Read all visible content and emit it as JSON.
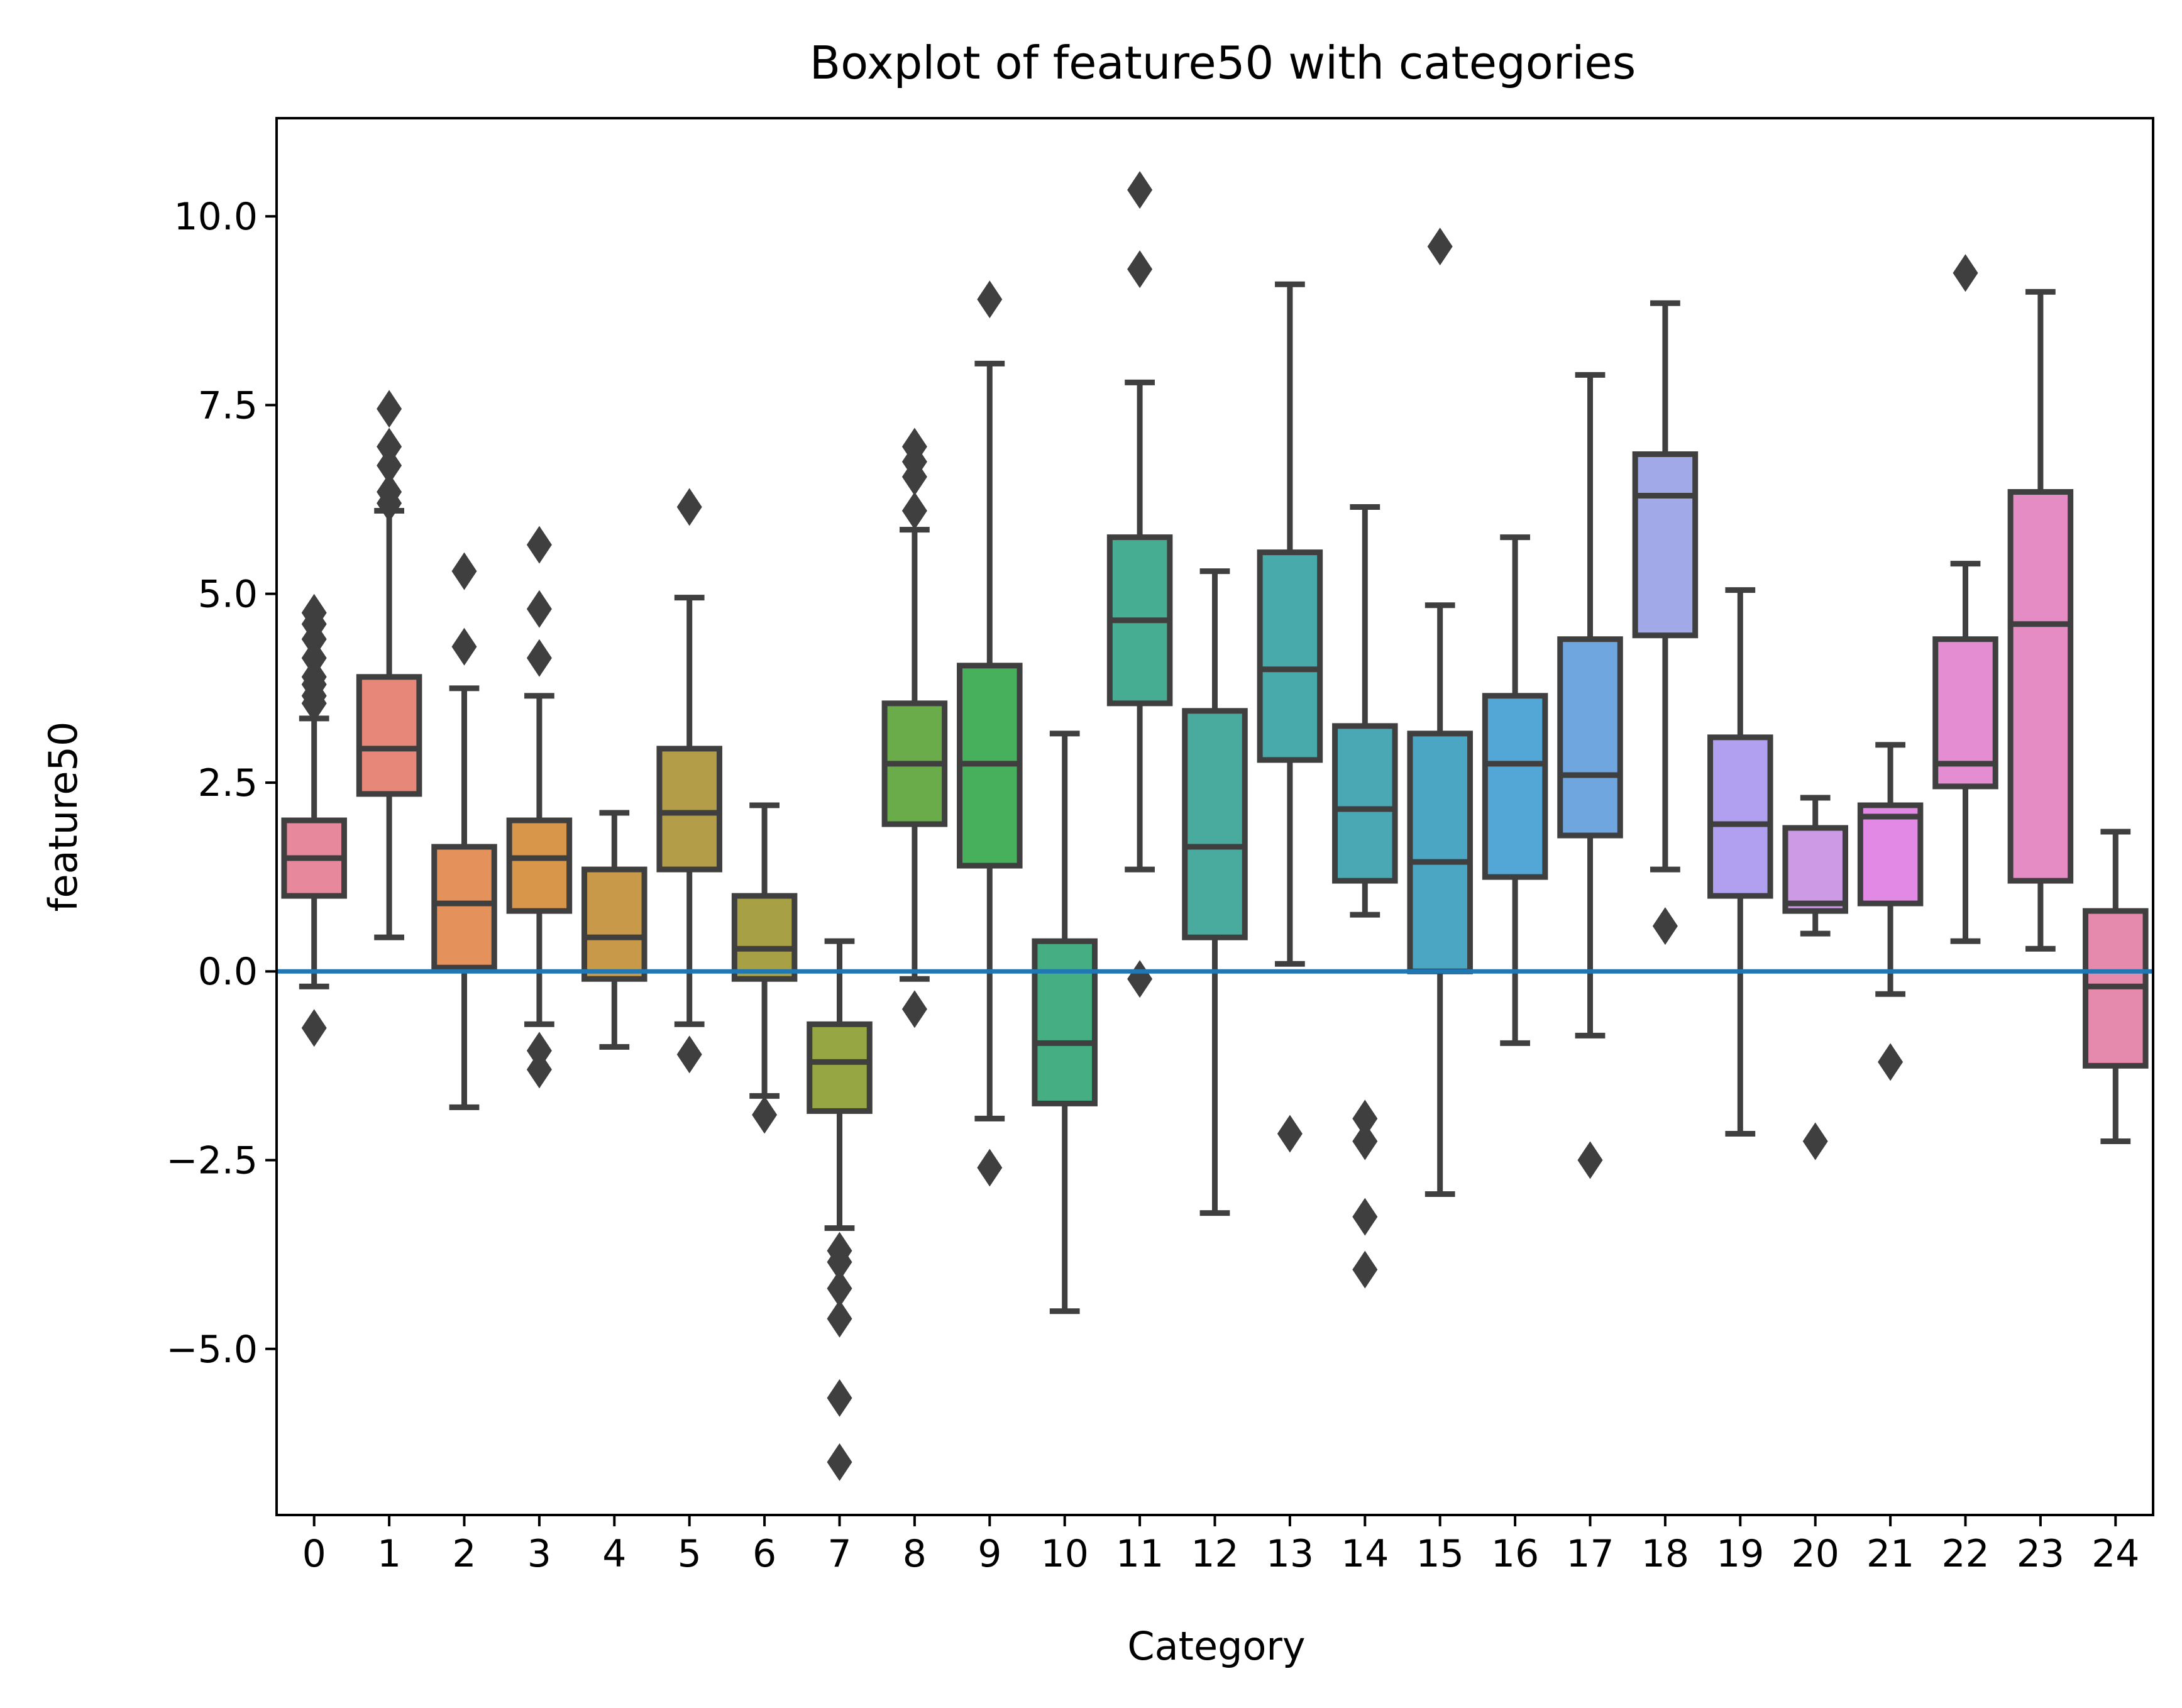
{
  "chart_data": {
    "type": "boxplot",
    "title": "Boxplot of feature50 with categories",
    "xlabel": "Category",
    "ylabel": "feature50",
    "ylim": [
      -7.2,
      11.3
    ],
    "yticks": [
      10.0,
      7.5,
      5.0,
      2.5,
      0.0,
      -2.5,
      -5.0
    ],
    "ytick_labels": [
      "10.0",
      "7.5",
      "5.0",
      "2.5",
      "0.0",
      "−2.5",
      "−5.0"
    ],
    "reference_line": {
      "y": 0.0,
      "color": "#1f77b4"
    },
    "grid": false,
    "categories": [
      "0",
      "1",
      "2",
      "3",
      "4",
      "5",
      "6",
      "7",
      "8",
      "9",
      "10",
      "11",
      "12",
      "13",
      "14",
      "15",
      "16",
      "17",
      "18",
      "19",
      "20",
      "21",
      "22",
      "23",
      "24"
    ],
    "boxes": [
      {
        "category": "0",
        "color": "#e8889c",
        "whislo": -0.2,
        "q1": 1.0,
        "median": 1.5,
        "q3": 2.0,
        "whishi": 3.35,
        "fliers": [
          -0.75,
          3.55,
          3.65,
          3.8,
          3.9,
          4.15,
          4.4,
          4.6,
          4.75
        ]
      },
      {
        "category": "1",
        "color": "#e7877a",
        "whislo": 0.45,
        "q1": 2.35,
        "median": 2.95,
        "q3": 3.9,
        "whishi": 6.1,
        "fliers": [
          6.2,
          6.35,
          6.7,
          6.95,
          7.45
        ]
      },
      {
        "category": "2",
        "color": "#e5915c",
        "whislo": -1.8,
        "q1": 0.05,
        "median": 0.9,
        "q3": 1.65,
        "whishi": 3.75,
        "fliers": [
          4.3,
          5.3
        ]
      },
      {
        "category": "3",
        "color": "#d7964a",
        "whislo": -0.7,
        "q1": 0.8,
        "median": 1.5,
        "q3": 2.0,
        "whishi": 3.65,
        "fliers": [
          -1.3,
          -1.05,
          4.15,
          4.8,
          5.65
        ]
      },
      {
        "category": "4",
        "color": "#c9994a",
        "whislo": -1.0,
        "q1": -0.1,
        "median": 0.45,
        "q3": 1.35,
        "whishi": 2.1,
        "fliers": []
      },
      {
        "category": "5",
        "color": "#b39d48",
        "whislo": -0.7,
        "q1": 1.35,
        "median": 2.1,
        "q3": 2.95,
        "whishi": 4.95,
        "fliers": [
          -1.1,
          6.15
        ]
      },
      {
        "category": "6",
        "color": "#a8a044",
        "whislo": -1.65,
        "q1": -0.1,
        "median": 0.3,
        "q3": 1.0,
        "whishi": 2.2,
        "fliers": [
          -1.9
        ]
      },
      {
        "category": "7",
        "color": "#96a642",
        "whislo": -3.4,
        "q1": -1.85,
        "median": -1.2,
        "q3": -0.7,
        "whishi": 0.4,
        "fliers": [
          -3.7,
          -3.85,
          -4.2,
          -4.6,
          -5.65,
          -6.5
        ]
      },
      {
        "category": "8",
        "color": "#6aac49",
        "whislo": -0.1,
        "q1": 1.95,
        "median": 2.75,
        "q3": 3.55,
        "whishi": 5.85,
        "fliers": [
          -0.5,
          6.1,
          6.55,
          6.75,
          6.95
        ]
      },
      {
        "category": "9",
        "color": "#46b05c",
        "whislo": -1.95,
        "q1": 1.4,
        "median": 2.75,
        "q3": 4.05,
        "whishi": 8.05,
        "fliers": [
          -2.6,
          8.9
        ]
      },
      {
        "category": "10",
        "color": "#45ae82",
        "whislo": -4.5,
        "q1": -1.75,
        "median": -0.95,
        "q3": 0.4,
        "whishi": 3.15,
        "fliers": []
      },
      {
        "category": "11",
        "color": "#46ad93",
        "whislo": 1.35,
        "q1": 3.55,
        "median": 4.65,
        "q3": 5.75,
        "whishi": 7.8,
        "fliers": [
          -0.1,
          9.3,
          10.35
        ]
      },
      {
        "category": "12",
        "color": "#48ab9e",
        "whislo": -3.2,
        "q1": 0.45,
        "median": 1.65,
        "q3": 3.45,
        "whishi": 5.3,
        "fliers": []
      },
      {
        "category": "13",
        "color": "#49aaab",
        "whislo": 0.1,
        "q1": 2.8,
        "median": 4.0,
        "q3": 5.55,
        "whishi": 9.1,
        "fliers": [
          -2.15
        ]
      },
      {
        "category": "14",
        "color": "#4aa8b5",
        "whislo": 0.75,
        "q1": 1.2,
        "median": 2.15,
        "q3": 3.25,
        "whishi": 6.15,
        "fliers": [
          -1.95,
          -2.25,
          -3.25,
          -3.95
        ]
      },
      {
        "category": "15",
        "color": "#4ba6c4",
        "whislo": -2.95,
        "q1": 0.0,
        "median": 1.45,
        "q3": 3.15,
        "whishi": 4.85,
        "fliers": [
          9.6
        ]
      },
      {
        "category": "16",
        "color": "#52a7d6",
        "whislo": -0.95,
        "q1": 1.25,
        "median": 2.75,
        "q3": 3.65,
        "whishi": 5.75,
        "fliers": []
      },
      {
        "category": "17",
        "color": "#6fa6e0",
        "whislo": -0.85,
        "q1": 1.8,
        "median": 2.6,
        "q3": 4.4,
        "whishi": 7.9,
        "fliers": [
          -2.5
        ]
      },
      {
        "category": "18",
        "color": "#a1a9e8",
        "whislo": 1.35,
        "q1": 4.45,
        "median": 6.3,
        "q3": 6.85,
        "whishi": 8.85,
        "fliers": [
          0.6
        ]
      },
      {
        "category": "19",
        "color": "#b19ff0",
        "whislo": -2.15,
        "q1": 1.0,
        "median": 1.95,
        "q3": 3.1,
        "whishi": 5.05,
        "fliers": []
      },
      {
        "category": "20",
        "color": "#cd9be6",
        "whislo": 0.5,
        "q1": 0.8,
        "median": 0.9,
        "q3": 1.9,
        "whishi": 2.3,
        "fliers": [
          -2.25
        ]
      },
      {
        "category": "21",
        "color": "#e289e5",
        "whislo": -0.3,
        "q1": 0.9,
        "median": 2.05,
        "q3": 2.2,
        "whishi": 3.0,
        "fliers": [
          -1.2
        ]
      },
      {
        "category": "22",
        "color": "#e58dd3",
        "whislo": 0.4,
        "q1": 2.45,
        "median": 2.75,
        "q3": 4.4,
        "whishi": 5.4,
        "fliers": [
          9.25
        ]
      },
      {
        "category": "23",
        "color": "#e68cc4",
        "whislo": 0.3,
        "q1": 1.2,
        "median": 4.6,
        "q3": 6.35,
        "whishi": 9.0,
        "fliers": []
      },
      {
        "category": "24",
        "color": "#e68aad",
        "whislo": -2.25,
        "q1": -1.25,
        "median": -0.2,
        "q3": 0.8,
        "whishi": 1.85,
        "fliers": []
      }
    ]
  }
}
